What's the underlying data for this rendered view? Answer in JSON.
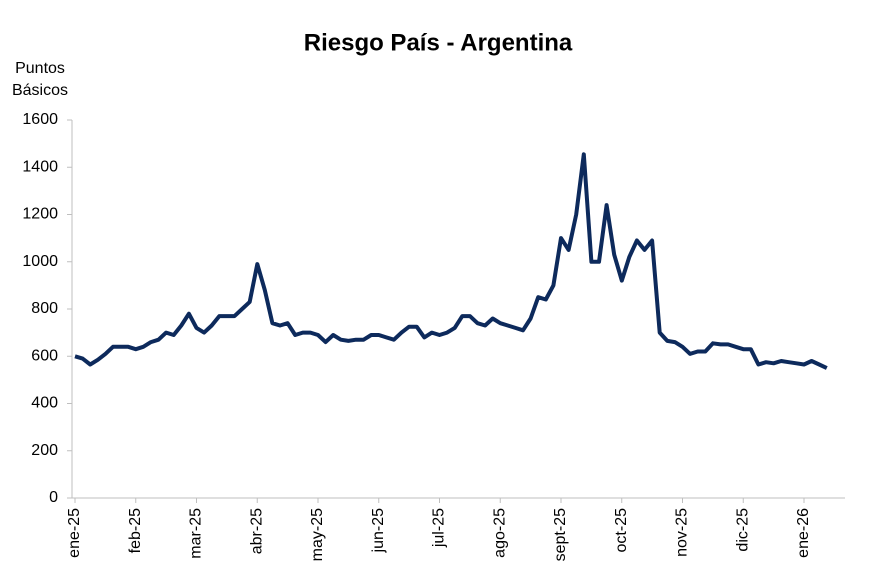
{
  "chart_data": {
    "type": "line",
    "title": "Riesgo País - Argentina",
    "ylabel": [
      "Puntos",
      "Básicos"
    ],
    "categories": [
      "ene-25",
      null,
      null,
      null,
      null,
      null,
      null,
      null,
      "feb-25",
      null,
      null,
      null,
      null,
      null,
      null,
      null,
      "mar-25",
      null,
      null,
      null,
      null,
      null,
      null,
      null,
      "abr-25",
      null,
      null,
      null,
      null,
      null,
      null,
      null,
      "may-25",
      null,
      null,
      null,
      null,
      null,
      null,
      null,
      "jun-25",
      null,
      null,
      null,
      null,
      null,
      null,
      null,
      "jul-25",
      null,
      null,
      null,
      null,
      null,
      null,
      null,
      "ago-25",
      null,
      null,
      null,
      null,
      null,
      null,
      null,
      "sept-25",
      null,
      null,
      null,
      null,
      null,
      null,
      null,
      "oct-25",
      null,
      null,
      null,
      null,
      null,
      null,
      null,
      "nov-25",
      null,
      null,
      null,
      null,
      null,
      null,
      null,
      "dic-25",
      null,
      null,
      null,
      null,
      null,
      null,
      null,
      "ene-26",
      null,
      null,
      null
    ],
    "series": [
      {
        "name": "Riesgo País",
        "color": "#0d2a5c",
        "values": [
          600,
          590,
          565,
          585,
          610,
          640,
          640,
          640,
          630,
          640,
          660,
          670,
          700,
          690,
          730,
          780,
          720,
          700,
          730,
          770,
          770,
          770,
          800,
          830,
          990,
          880,
          740,
          730,
          740,
          690,
          700,
          700,
          690,
          660,
          690,
          670,
          665,
          670,
          670,
          690,
          690,
          680,
          670,
          700,
          725,
          725,
          680,
          700,
          690,
          700,
          720,
          770,
          770,
          740,
          730,
          760,
          740,
          730,
          720,
          710,
          760,
          850,
          840,
          900,
          1100,
          1050,
          1200,
          1455,
          1000,
          1000,
          1240,
          1030,
          920,
          1020,
          1090,
          1050,
          1090,
          700,
          665,
          660,
          640,
          610,
          620,
          620,
          655,
          650,
          650,
          640,
          630,
          630,
          565,
          575,
          570,
          580,
          575,
          570,
          565,
          580,
          565,
          550
        ]
      }
    ],
    "ylim": [
      0,
      1600
    ],
    "yticks": [
      0,
      200,
      400,
      600,
      800,
      1000,
      1200,
      1400,
      1600
    ]
  }
}
